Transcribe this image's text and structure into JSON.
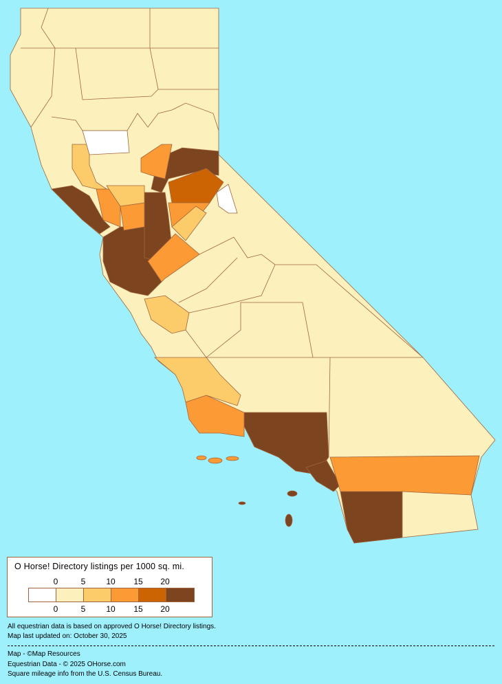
{
  "legend": {
    "title": "O Horse! Directory listings per 1000 sq. mi.",
    "top_ticks": [
      "0",
      "5",
      "10",
      "15",
      "20"
    ],
    "bottom_ticks": [
      "0",
      "5",
      "10",
      "15",
      "20"
    ],
    "bins": [
      {
        "range": "0",
        "color": "#ffffff"
      },
      {
        "range": "0-5",
        "color": "#fcf1bc"
      },
      {
        "range": "5-10",
        "color": "#fdcc6a"
      },
      {
        "range": "10-15",
        "color": "#fc9a35"
      },
      {
        "range": "15-20",
        "color": "#cc6404"
      },
      {
        "range": "20+",
        "color": "#7c4520"
      }
    ]
  },
  "notes": {
    "line1": "All equestrian data is based on approved O Horse! Directory listings.",
    "line2": "Map last updated on: October 30, 2025",
    "credit1": "Map - ©Map Resources",
    "credit2": "Equestrian Data - © 2025 OHorse.com",
    "credit3": "Square mileage info from the U.S. Census Bureau."
  },
  "colors": {
    "background": "#9ff0fd",
    "border": "#a0643c"
  }
}
